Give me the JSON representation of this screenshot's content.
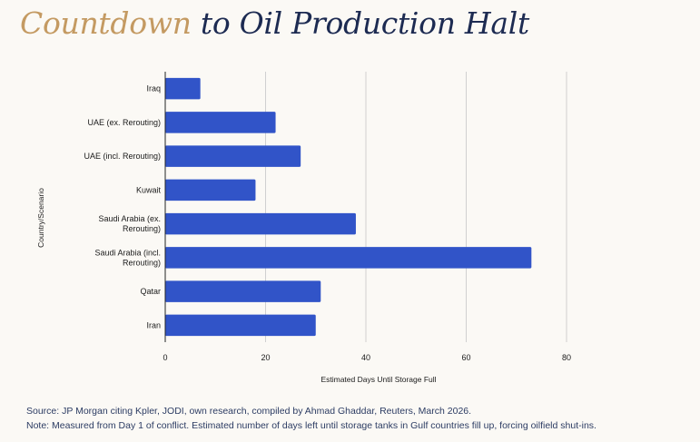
{
  "title": {
    "part1": "Countdown",
    "part2": "to Oil Production Halt"
  },
  "colors": {
    "bar": "#3154c8",
    "title_accent": "#c49a62",
    "title_main": "#1d2b52",
    "grid": "#d0d0d0"
  },
  "chart_data": {
    "type": "bar",
    "orientation": "horizontal",
    "categories": [
      "Iraq",
      "UAE (ex. Rerouting)",
      "UAE (incl. Rerouting)",
      "Kuwait",
      "Saudi Arabia (ex. Rerouting)",
      "Saudi Arabia (incl. Rerouting)",
      "Qatar",
      "Iran"
    ],
    "category_lines": [
      [
        "Iraq"
      ],
      [
        "UAE (ex. Rerouting)"
      ],
      [
        "UAE (incl. Rerouting)"
      ],
      [
        "Kuwait"
      ],
      [
        "Saudi Arabia (ex.",
        "Rerouting)"
      ],
      [
        "Saudi Arabia (incl.",
        "Rerouting)"
      ],
      [
        "Qatar"
      ],
      [
        "Iran"
      ]
    ],
    "values": [
      7,
      22,
      27,
      18,
      38,
      73,
      31,
      30
    ],
    "xlabel": "Estimated Days Until Storage Full",
    "ylabel": "Country/Scenario",
    "xlim": [
      0,
      80
    ],
    "xticks": [
      0,
      20,
      40,
      60,
      80
    ],
    "grid": true
  },
  "footer": {
    "source": "Source: JP Morgan citing Kpler, JODI, own research, compiled by Ahmad Ghaddar, Reuters, March 2026.",
    "note": "Note: Measured from Day 1 of conflict. Estimated number of days left until storage tanks in Gulf countries fill up, forcing oilfield shut-ins."
  }
}
